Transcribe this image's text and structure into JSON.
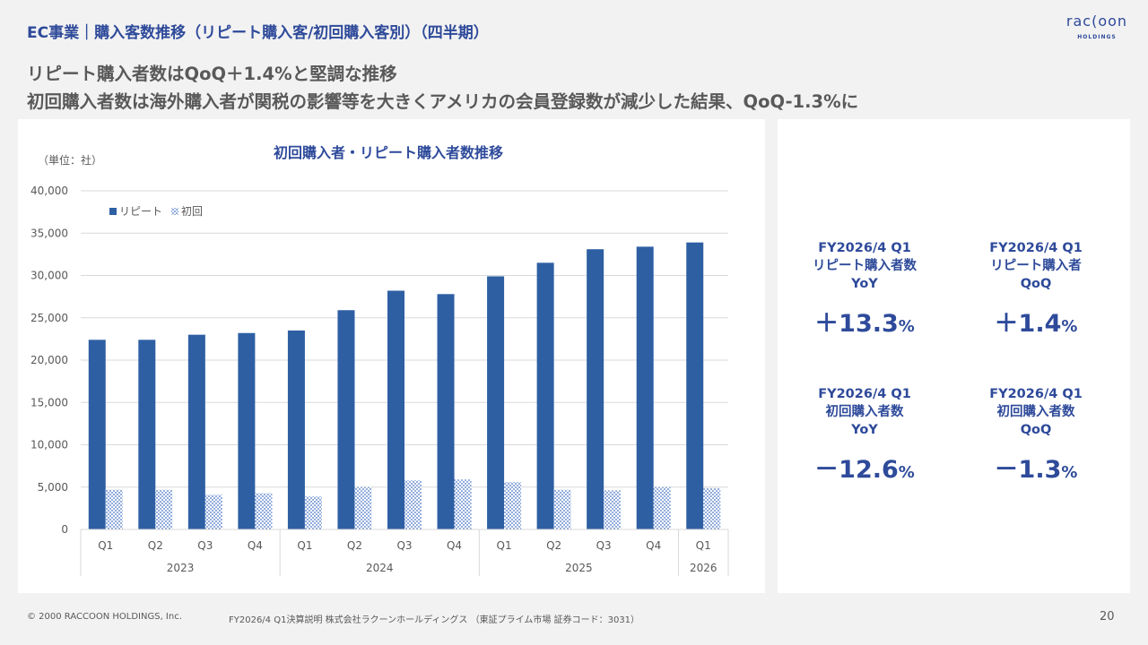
{
  "header": {
    "title": "EC事業｜購入客数推移（リピート購入客/初回購入客別）（四半期）"
  },
  "logo": {
    "main": "rac(oon",
    "sub": "HOLDINGS"
  },
  "headlines": [
    "リピート購入者数はQoQ＋1.4%と堅調な推移",
    "初回購入者数は海外購入者が関税の影響等を大きくアメリカの会員登録数が減少した結果、QoQ-1.3%に"
  ],
  "chart_data": {
    "type": "bar",
    "title": "初回購入者・リピート購入者数推移",
    "unit_note": "（単位：社）",
    "categories": [
      "Q1",
      "Q2",
      "Q3",
      "Q4",
      "Q1",
      "Q2",
      "Q3",
      "Q4",
      "Q1",
      "Q2",
      "Q3",
      "Q4",
      "Q1"
    ],
    "year_groups": [
      {
        "label": "2023",
        "count": 4
      },
      {
        "label": "2024",
        "count": 4
      },
      {
        "label": "2025",
        "count": 4
      },
      {
        "label": "2026",
        "count": 1
      }
    ],
    "series": [
      {
        "name": "リピート",
        "color": "#2e5fa3",
        "pattern": "solid",
        "values": [
          22400,
          22400,
          23000,
          23200,
          23500,
          25900,
          28200,
          27800,
          29900,
          31500,
          33100,
          33400,
          33900
        ]
      },
      {
        "name": "初回",
        "color": "#4472c4",
        "pattern": "dots",
        "values": [
          4700,
          4700,
          4100,
          4300,
          3900,
          5000,
          5800,
          5900,
          5600,
          4700,
          4600,
          5000,
          4900
        ]
      }
    ],
    "ylim": [
      0,
      40000
    ],
    "yticks": [
      "0",
      "5,000",
      "10,000",
      "15,000",
      "20,000",
      "25,000",
      "30,000",
      "35,000",
      "40,000"
    ],
    "ytick_values": [
      0,
      5000,
      10000,
      15000,
      20000,
      25000,
      30000,
      35000,
      40000
    ],
    "legend_position": "top-left",
    "grid": true
  },
  "kpis": [
    {
      "line1": "FY2026/4 Q1",
      "line2": "リピート購入者数",
      "line3": "YoY",
      "value": "＋13.3",
      "unit": "%"
    },
    {
      "line1": "FY2026/4 Q1",
      "line2": "リピート購入者",
      "line3": "QoQ",
      "value": "＋1.4",
      "unit": "%"
    },
    {
      "line1": "FY2026/4 Q1",
      "line2": "初回購入者数",
      "line3": "YoY",
      "value": "－12.6",
      "unit": "%"
    },
    {
      "line1": "FY2026/4 Q1",
      "line2": "初回購入者数",
      "line3": "QoQ",
      "value": "－1.3",
      "unit": "%"
    }
  ],
  "footer": {
    "copyright": "© 2000 RACCOON HOLDINGS, Inc.",
    "doc": "FY2026/4 Q1決算説明 株式会社ラクーンホールディングス （東証プライム市場 証券コード：3031）",
    "page": "20"
  }
}
